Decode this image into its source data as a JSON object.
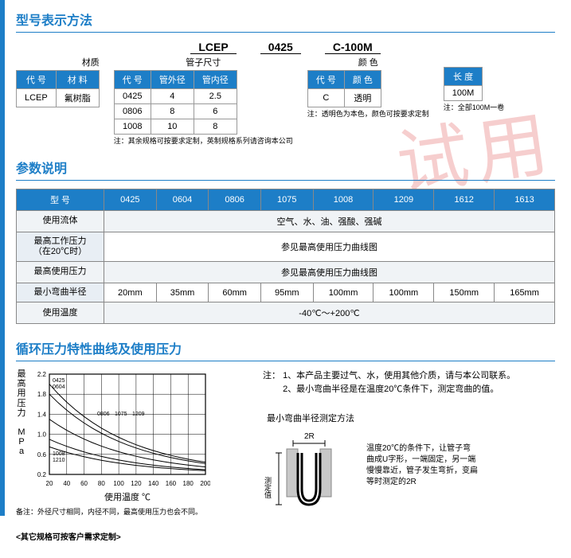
{
  "section1_title": "型号表示方法",
  "model_segments": [
    "LCEP",
    "0425",
    "C-100M"
  ],
  "sub_labels": {
    "material": "材质",
    "tube_size": "管子尺寸",
    "color": "颜 色",
    "length": "长 度"
  },
  "material_table": {
    "headers": [
      "代 号",
      "材 料"
    ],
    "rows": [
      [
        "LCEP",
        "氟树脂"
      ]
    ]
  },
  "size_table": {
    "headers": [
      "代 号",
      "管外径",
      "管内径"
    ],
    "rows": [
      [
        "0425",
        "4",
        "2.5"
      ],
      [
        "0806",
        "8",
        "6"
      ],
      [
        "1008",
        "10",
        "8"
      ]
    ],
    "note": "注：其余规格可按要求定制，英制规格系列请咨询本公司"
  },
  "color_table": {
    "headers": [
      "代 号",
      "颜 色"
    ],
    "rows": [
      [
        "C",
        "透明"
      ]
    ],
    "note": "注：透明色为本色，颜色可按要求定制"
  },
  "length_table": {
    "headers": [
      "长 度"
    ],
    "rows": [
      [
        "100M"
      ]
    ],
    "note": "注：全部100M一卷"
  },
  "section2_title": "参数说明",
  "spec_table": {
    "header": [
      "型 号",
      "0425",
      "0604",
      "0806",
      "1075",
      "1008",
      "1209",
      "1612",
      "1613"
    ],
    "rows": [
      {
        "label": "使用流体",
        "span_text": "空气、水、油、强酸、强碱"
      },
      {
        "label": "最高工作压力\n（在20℃时）",
        "span_text": "参见最高使用压力曲线图"
      },
      {
        "label": "最高使用压力",
        "span_text": "参见最高使用压力曲线图"
      },
      {
        "label": "最小弯曲半径",
        "cells": [
          "20mm",
          "35mm",
          "60mm",
          "95mm",
          "100mm",
          "100mm",
          "150mm",
          "165mm"
        ]
      },
      {
        "label": "使用温度",
        "span_text": "-40℃～+200℃"
      }
    ]
  },
  "section3_title": "循环压力特性曲线及使用压力",
  "chart": {
    "y_label": "最高用压力 MPa",
    "x_label": "使用温度 ℃",
    "x_ticks": [
      20,
      40,
      60,
      80,
      100,
      120,
      140,
      160,
      180,
      200
    ],
    "y_ticks": [
      "0.2",
      "0.6",
      "1.0",
      "1.4",
      "1.8",
      "2.2"
    ],
    "curve_labels_top": [
      "0425",
      "0604"
    ],
    "curve_labels_mid": [
      "0806",
      "1075",
      "1209"
    ],
    "curve_labels_bot": [
      "1008",
      "1210"
    ],
    "background": "#ffffff",
    "grid_color": "#000000",
    "line_color": "#000000",
    "footnote": "备注：外径尺寸相同，内径不同，最高使用压力也会不同。"
  },
  "notes_right": {
    "prefix": "注：",
    "n1": "1、本产品主要过气、水，使用其他介质，请与本公司联系。",
    "n2": "2、最小弯曲半径是在温度20℃条件下，测定弯曲的值。"
  },
  "bend": {
    "title": "最小弯曲半径测定方法",
    "label_2r": "2R",
    "label_side": "测定值",
    "desc": "温度20℃的条件下，让管子弯曲成U字形，一端固定，另一端慢慢靠近，管子发生弯折，变扁等时测定的2R"
  },
  "footer": "<其它规格可按客户需求定制>",
  "colors": {
    "blue": "#1d7ec7",
    "border": "#888888"
  }
}
